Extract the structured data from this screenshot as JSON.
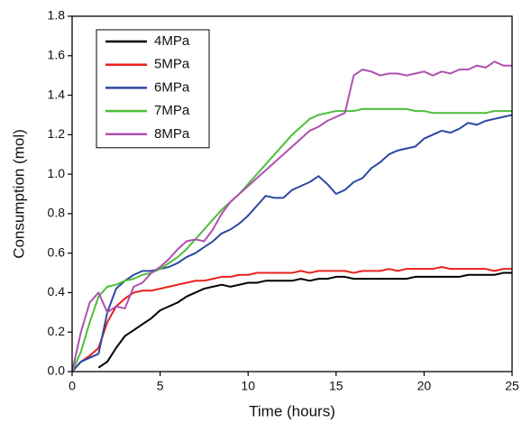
{
  "chart_data": {
    "type": "line",
    "xlabel": "Time (hours)",
    "ylabel": "Consumption (mol)",
    "x": [
      0,
      0.5,
      1,
      1.5,
      2,
      2.5,
      3,
      3.5,
      4,
      4.5,
      5,
      5.5,
      6,
      6.5,
      7,
      7.5,
      8,
      8.5,
      9,
      9.5,
      10,
      10.5,
      11,
      11.5,
      12,
      12.5,
      13,
      13.5,
      14,
      14.5,
      15,
      15.5,
      16,
      16.5,
      17,
      17.5,
      18,
      18.5,
      19,
      19.5,
      20,
      20.5,
      21,
      21.5,
      22,
      22.5,
      23,
      23.5,
      24,
      24.5,
      25
    ],
    "series": [
      {
        "name": "4MPa",
        "color": "#000000",
        "values": [
          null,
          null,
          null,
          0.02,
          0.05,
          0.12,
          0.18,
          0.21,
          0.24,
          0.27,
          0.31,
          0.33,
          0.35,
          0.38,
          0.4,
          0.42,
          0.43,
          0.44,
          0.43,
          0.44,
          0.45,
          0.45,
          0.46,
          0.46,
          0.46,
          0.46,
          0.47,
          0.46,
          0.47,
          0.47,
          0.48,
          0.48,
          0.47,
          0.47,
          0.47,
          0.47,
          0.47,
          0.47,
          0.47,
          0.48,
          0.48,
          0.48,
          0.48,
          0.48,
          0.48,
          0.49,
          0.49,
          0.49,
          0.49,
          0.5,
          0.5
        ]
      },
      {
        "name": "5MPa",
        "color": "#e8201c",
        "values": [
          0,
          0.05,
          0.08,
          0.12,
          0.25,
          0.33,
          0.37,
          0.4,
          0.41,
          0.41,
          0.42,
          0.43,
          0.44,
          0.45,
          0.46,
          0.46,
          0.47,
          0.48,
          0.48,
          0.49,
          0.49,
          0.5,
          0.5,
          0.5,
          0.5,
          0.5,
          0.51,
          0.5,
          0.51,
          0.51,
          0.51,
          0.51,
          0.5,
          0.51,
          0.51,
          0.51,
          0.52,
          0.51,
          0.52,
          0.52,
          0.52,
          0.52,
          0.53,
          0.52,
          0.52,
          0.52,
          0.52,
          0.52,
          0.51,
          0.52,
          0.52
        ]
      },
      {
        "name": "6MPa",
        "color": "#2b48a0",
        "values": [
          0,
          0.05,
          0.07,
          0.09,
          0.3,
          0.42,
          0.46,
          0.49,
          0.51,
          0.51,
          0.52,
          0.53,
          0.55,
          0.58,
          0.6,
          0.63,
          0.66,
          0.7,
          0.72,
          0.75,
          0.79,
          0.84,
          0.89,
          0.88,
          0.88,
          0.92,
          0.94,
          0.96,
          0.99,
          0.95,
          0.9,
          0.92,
          0.96,
          0.98,
          1.03,
          1.06,
          1.1,
          1.12,
          1.13,
          1.14,
          1.18,
          1.2,
          1.22,
          1.21,
          1.23,
          1.26,
          1.25,
          1.27,
          1.28,
          1.29,
          1.3
        ]
      },
      {
        "name": "7MPa",
        "color": "#4cbf3a",
        "values": [
          0,
          0.1,
          0.25,
          0.38,
          0.43,
          0.44,
          0.46,
          0.47,
          0.49,
          0.5,
          0.52,
          0.55,
          0.58,
          0.62,
          0.67,
          0.72,
          0.77,
          0.82,
          0.86,
          0.9,
          0.95,
          1.0,
          1.05,
          1.1,
          1.15,
          1.2,
          1.24,
          1.28,
          1.3,
          1.31,
          1.32,
          1.32,
          1.32,
          1.33,
          1.33,
          1.33,
          1.33,
          1.33,
          1.33,
          1.32,
          1.32,
          1.31,
          1.31,
          1.31,
          1.31,
          1.31,
          1.31,
          1.31,
          1.32,
          1.32,
          1.32
        ]
      },
      {
        "name": "8MPa",
        "color": "#b04fb0",
        "values": [
          0,
          0.2,
          0.35,
          0.4,
          0.3,
          0.33,
          0.32,
          0.43,
          0.45,
          0.5,
          0.53,
          0.57,
          0.62,
          0.66,
          0.67,
          0.66,
          0.72,
          0.8,
          0.86,
          0.9,
          0.94,
          0.98,
          1.02,
          1.06,
          1.1,
          1.14,
          1.18,
          1.22,
          1.24,
          1.27,
          1.29,
          1.31,
          1.5,
          1.53,
          1.52,
          1.5,
          1.51,
          1.51,
          1.5,
          1.51,
          1.52,
          1.5,
          1.52,
          1.51,
          1.53,
          1.53,
          1.55,
          1.54,
          1.57,
          1.55,
          1.55
        ]
      }
    ],
    "xlim": [
      0,
      25
    ],
    "xticks": [
      0,
      5,
      10,
      15,
      20,
      25
    ],
    "ylim": [
      0,
      1.8
    ],
    "yticks": [
      {
        "value": 0,
        "label": "0.0"
      },
      0.2,
      0.4,
      0.6,
      0.8,
      {
        "value": 1,
        "label": "1.0"
      },
      1.2,
      1.4,
      1.6,
      1.8
    ],
    "grid": false,
    "legend": "upper left"
  }
}
